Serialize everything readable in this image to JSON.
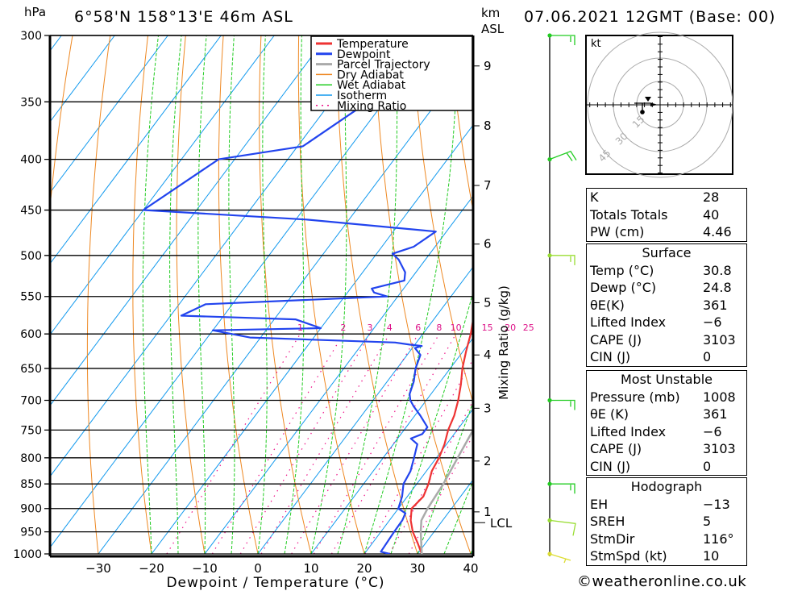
{
  "header": {
    "location": "6°58'N  158°13'E  46m  ASL",
    "datetime": "07.06.2021  12GMT  (Base: 00)",
    "left_unit": "hPa",
    "right_unit_line1": "km",
    "right_unit_line2": "ASL"
  },
  "chart_data": {
    "type": "line",
    "title": "Skew-T log-P sounding",
    "xlabel": "Dewpoint / Temperature (°C)",
    "ylabel": "hPa",
    "secondary_ylabel": "Mixing Ratio (g/kg)",
    "xlim": [
      -40,
      40
    ],
    "ylim_hpa": [
      1000,
      300
    ],
    "x_ticks": [
      -30,
      -20,
      -10,
      0,
      10,
      20,
      30,
      40
    ],
    "pressure_ticks": [
      300,
      350,
      400,
      450,
      500,
      550,
      600,
      650,
      700,
      750,
      800,
      850,
      900,
      950,
      1000
    ],
    "km_ticks": [
      {
        "km": 9,
        "hpa": 322
      },
      {
        "km": 8,
        "hpa": 370
      },
      {
        "km": 7,
        "hpa": 425
      },
      {
        "km": 6,
        "hpa": 487
      },
      {
        "km": 5,
        "hpa": 558
      },
      {
        "km": 4,
        "hpa": 630
      },
      {
        "km": 3,
        "hpa": 713
      },
      {
        "km": 2,
        "hpa": 806
      },
      {
        "km": 1,
        "hpa": 907
      }
    ],
    "lcl_hpa": 930,
    "lcl_label": "LCL",
    "mixing_ratio_labels": [
      "1",
      "2",
      "3",
      "4",
      "6",
      "8",
      "10",
      "15",
      "20",
      "25"
    ],
    "legend": {
      "placement": "top-right",
      "entries": [
        {
          "label": "Temperature",
          "color": "#ee3333",
          "style": "solid"
        },
        {
          "label": "Dewpoint",
          "color": "#2244ee",
          "style": "solid"
        },
        {
          "label": "Parcel Trajectory",
          "color": "#aaaaaa",
          "style": "solid"
        },
        {
          "label": "Dry Adiabat",
          "color": "#ee8822",
          "style": "solid"
        },
        {
          "label": "Wet Adiabat",
          "color": "#22cc22",
          "style": "dashed"
        },
        {
          "label": "Isotherm",
          "color": "#1199ee",
          "style": "solid"
        },
        {
          "label": "Mixing Ratio",
          "color": "#ee1188",
          "style": "dotted"
        }
      ]
    },
    "series": [
      {
        "name": "Temperature",
        "points_px_free": true,
        "data": [
          [
            1000,
            30.8
          ],
          [
            975,
            28.5
          ],
          [
            950,
            26
          ],
          [
            925,
            24
          ],
          [
            900,
            22.5
          ],
          [
            875,
            23
          ],
          [
            850,
            22.2
          ],
          [
            825,
            21
          ],
          [
            800,
            20.5
          ],
          [
            775,
            19.6
          ],
          [
            750,
            18.3
          ],
          [
            725,
            17.4
          ],
          [
            700,
            16
          ],
          [
            675,
            14.3
          ],
          [
            650,
            12.3
          ],
          [
            625,
            10.6
          ],
          [
            600,
            9
          ],
          [
            575,
            7
          ],
          [
            550,
            4.8
          ],
          [
            525,
            2.8
          ],
          [
            500,
            1
          ],
          [
            475,
            -1.5
          ],
          [
            460,
            -3
          ],
          [
            450,
            -4.2
          ],
          [
            425,
            -7.5
          ],
          [
            400,
            -11
          ],
          [
            375,
            -15
          ],
          [
            360,
            -17.5
          ]
        ]
      },
      {
        "name": "Dewpoint",
        "data": [
          [
            1000,
            24.8
          ],
          [
            995,
            22.8
          ],
          [
            950,
            22.5
          ],
          [
            925,
            22.4
          ],
          [
            910,
            22
          ],
          [
            900,
            20
          ],
          [
            875,
            19
          ],
          [
            850,
            17.5
          ],
          [
            825,
            17
          ],
          [
            800,
            15.8
          ],
          [
            775,
            14.5
          ],
          [
            765,
            12.5
          ],
          [
            757,
            14
          ],
          [
            745,
            14
          ],
          [
            725,
            11
          ],
          [
            710,
            8.5
          ],
          [
            700,
            7
          ],
          [
            690,
            6
          ],
          [
            670,
            5
          ],
          [
            650,
            3.5
          ],
          [
            630,
            2.5
          ],
          [
            620,
            0.5
          ],
          [
            617,
            1.5
          ],
          [
            615,
            -1
          ],
          [
            612,
            -4
          ],
          [
            605,
            -32
          ],
          [
            595,
            -40
          ],
          [
            592,
            -20
          ],
          [
            580,
            -26
          ],
          [
            575,
            -48
          ],
          [
            560,
            -45
          ],
          [
            550,
            -12
          ],
          [
            545,
            -15
          ],
          [
            540,
            -16
          ],
          [
            530,
            -11
          ],
          [
            520,
            -12
          ],
          [
            505,
            -15
          ],
          [
            498,
            -17
          ],
          [
            490,
            -14
          ],
          [
            473,
            -12
          ],
          [
            460,
            -38
          ],
          [
            450,
            -70
          ],
          [
            400,
            -63
          ],
          [
            388,
            -49
          ],
          [
            350,
            -43
          ],
          [
            340,
            -40
          ],
          [
            333,
            -37
          ],
          [
            328,
            -39
          ],
          [
            322,
            -33
          ],
          [
            316,
            -46
          ],
          [
            314,
            -40
          ],
          [
            311,
            -55
          ],
          [
            308,
            -48
          ],
          [
            303,
            -17
          ],
          [
            300,
            -14
          ]
        ]
      },
      {
        "name": "Parcel Trajectory",
        "data": [
          [
            1000,
            30.8
          ],
          [
            950,
            27.5
          ],
          [
            925,
            26
          ],
          [
            900,
            25.5
          ],
          [
            850,
            25
          ],
          [
            800,
            24
          ],
          [
            750,
            23
          ],
          [
            700,
            22
          ],
          [
            650,
            20.5
          ],
          [
            600,
            19
          ],
          [
            550,
            17
          ],
          [
            500,
            14.5
          ],
          [
            450,
            11.5
          ],
          [
            400,
            7.8
          ],
          [
            350,
            3
          ],
          [
            345,
            2.5
          ]
        ]
      }
    ],
    "wind_barbs": [
      {
        "hpa": 300,
        "speed_kt": 10,
        "color": "#22cc22"
      },
      {
        "hpa": 400,
        "speed_kt": 15,
        "color": "#22cc22"
      },
      {
        "hpa": 500,
        "speed_kt": 10,
        "color": "#99dd33"
      },
      {
        "hpa": 700,
        "speed_kt": 10,
        "color": "#22cc22"
      },
      {
        "hpa": 850,
        "speed_kt": 10,
        "color": "#22cc22"
      },
      {
        "hpa": 925,
        "speed_kt": 10,
        "color": "#99dd33"
      },
      {
        "hpa": 1000,
        "speed_kt": 5,
        "color": "#dddd33"
      }
    ],
    "hodograph": {
      "unit_label": "kt",
      "ring_labels": [
        "15",
        "30",
        "45"
      ]
    }
  },
  "indices": {
    "top": [
      {
        "label": "K",
        "value": "28"
      },
      {
        "label": "Totals Totals",
        "value": "40"
      },
      {
        "label": "PW (cm)",
        "value": "4.46"
      }
    ],
    "surface": {
      "title": "Surface",
      "rows": [
        {
          "label": "Temp (°C)",
          "value": "30.8"
        },
        {
          "label": "Dewp (°C)",
          "value": "24.8"
        },
        {
          "label": "θE(K)",
          "value": "361"
        },
        {
          "label": "Lifted Index",
          "value": "−6"
        },
        {
          "label": "CAPE (J)",
          "value": "3103"
        },
        {
          "label": "CIN (J)",
          "value": "0"
        }
      ]
    },
    "most_unstable": {
      "title": "Most Unstable",
      "rows": [
        {
          "label": "Pressure (mb)",
          "value": "1008"
        },
        {
          "label": "θE (K)",
          "value": "361"
        },
        {
          "label": "Lifted Index",
          "value": "−6"
        },
        {
          "label": "CAPE (J)",
          "value": "3103"
        },
        {
          "label": "CIN (J)",
          "value": "0"
        }
      ]
    },
    "hodograph": {
      "title": "Hodograph",
      "rows": [
        {
          "label": "EH",
          "value": "−13"
        },
        {
          "label": "SREH",
          "value": "5"
        },
        {
          "label": "StmDir",
          "value": "116°"
        },
        {
          "label": "StmSpd (kt)",
          "value": "10"
        }
      ]
    }
  },
  "footer": {
    "copyright": "©weatheronline.co.uk"
  }
}
